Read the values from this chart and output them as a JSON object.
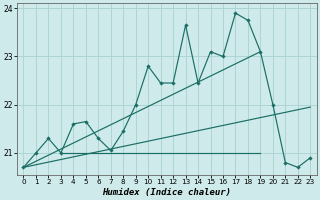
{
  "xlabel": "Humidex (Indice chaleur)",
  "background_color": "#ceeaea",
  "grid_color": "#add4d4",
  "line_color": "#1a6e66",
  "xlim": [
    -0.5,
    23.5
  ],
  "ylim": [
    20.55,
    24.1
  ],
  "yticks": [
    21,
    22,
    23,
    24
  ],
  "xticks": [
    0,
    1,
    2,
    3,
    4,
    5,
    6,
    7,
    8,
    9,
    10,
    11,
    12,
    13,
    14,
    15,
    16,
    17,
    18,
    19,
    20,
    21,
    22,
    23
  ],
  "series": {
    "main": {
      "x": [
        0,
        1,
        2,
        3,
        4,
        5,
        6,
        7,
        8,
        9,
        10,
        11,
        12,
        13,
        14,
        15,
        16,
        17,
        18,
        19,
        20,
        21,
        22,
        23
      ],
      "y": [
        20.7,
        21.0,
        21.3,
        21.0,
        21.6,
        21.65,
        21.3,
        21.05,
        21.45,
        22.0,
        22.8,
        22.45,
        22.45,
        23.65,
        22.45,
        23.1,
        23.0,
        23.9,
        23.75,
        23.1,
        22.0,
        20.8,
        20.7,
        20.9
      ]
    },
    "trend_upper": {
      "x": [
        0,
        19
      ],
      "y": [
        20.7,
        23.1
      ]
    },
    "trend_lower": {
      "x": [
        0,
        23
      ],
      "y": [
        20.7,
        21.95
      ]
    },
    "flat": {
      "x": [
        3,
        19
      ],
      "y": [
        21.0,
        21.0
      ]
    }
  }
}
